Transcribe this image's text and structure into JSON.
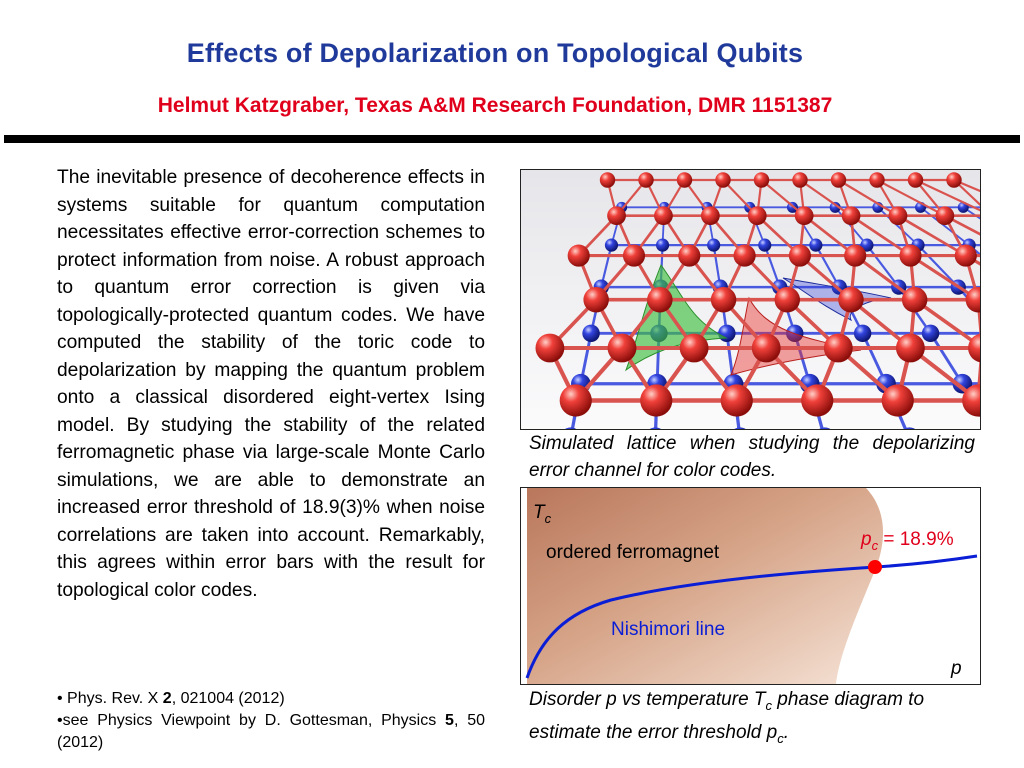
{
  "header": {
    "title": "Effects of Depolarization on Topological Qubits",
    "subtitle": "Helmut Katzgraber, Texas A&M Research Foundation, DMR 1151387"
  },
  "body": {
    "paragraph": "The inevitable presence of decoherence effects in systems suitable for quantum computation necessitates effective error-correction schemes to protect information from noise. A robust approach to quantum error correction is given via topologically-protected quantum codes. We have computed the stability of the toric code to depolarization by mapping the quantum problem onto a classical disordered eight-vertex Ising model. By studying the stability of the related ferromagnetic phase via large-scale Monte Carlo simulations, we are able to demonstrate an increased error threshold of 18.9(3)% when noise correlations are taken into account. Remarkably, this agrees within error bars with the result for topological color codes."
  },
  "references": [
    {
      "bullet": "•",
      "prefix": " Phys. Rev. X ",
      "bold": "2",
      "suffix": ", 021004 (2012)"
    },
    {
      "bullet": "•",
      "prefix": "see Physics Viewpoint by D. Gottesman, Physics ",
      "bold": "5",
      "suffix": ", 50 (2012)"
    }
  ],
  "figure1": {
    "caption": "Simulated lattice when studying the depolarizing error channel for color codes.",
    "colors": {
      "red_sphere": "#e8302c",
      "blue_sphere": "#2e3fd6",
      "green_plaquette": "#3fbf3f",
      "red_link": "#d9534f",
      "blue_link": "#4a5ae0"
    }
  },
  "figure2": {
    "y_axis_label": "T",
    "y_axis_subscript": "c",
    "x_axis_label": "p",
    "phase_label": "ordered ferromagnet",
    "line_label": "Nishimori line",
    "critical_label_p": "p",
    "critical_label_sub": "c",
    "critical_label_value": " = 18.9%",
    "caption_part1": "Disorder p vs temperature T",
    "caption_sub1": "c",
    "caption_part2": " phase diagram to estimate the error threshold p",
    "caption_sub2": "c",
    "caption_part3": ".",
    "colors": {
      "ordered_phase": "#c8876a",
      "nishimori_line": "#0a1ed6",
      "critical_point": "#ff0000",
      "critical_label": "#e0001b"
    }
  }
}
